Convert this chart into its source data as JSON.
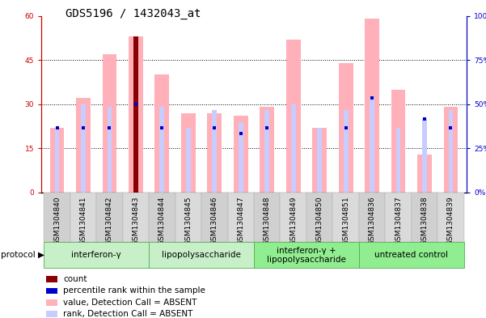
{
  "title": "GDS5196 / 1432043_at",
  "samples": [
    "GSM1304840",
    "GSM1304841",
    "GSM1304842",
    "GSM1304843",
    "GSM1304844",
    "GSM1304845",
    "GSM1304846",
    "GSM1304847",
    "GSM1304848",
    "GSM1304849",
    "GSM1304850",
    "GSM1304851",
    "GSM1304836",
    "GSM1304837",
    "GSM1304838",
    "GSM1304839"
  ],
  "value_bars": [
    22,
    32,
    47,
    53,
    40,
    27,
    27,
    26,
    29,
    52,
    22,
    44,
    59,
    35,
    13,
    29
  ],
  "rank_bars": [
    22,
    30,
    29,
    30,
    29,
    22,
    28,
    24,
    28,
    30,
    22,
    28,
    32,
    22,
    25,
    28
  ],
  "count_bar_index": 3,
  "count_bar_height": 53,
  "blue_rank_values": [
    22,
    22,
    22,
    30,
    22,
    -1,
    22,
    20,
    22,
    -1,
    -1,
    22,
    32,
    -1,
    25,
    22
  ],
  "protocols": [
    {
      "label": "interferon-γ",
      "start": 0,
      "end": 4,
      "color": "#c8f0c8"
    },
    {
      "label": "lipopolysaccharide",
      "start": 4,
      "end": 8,
      "color": "#c8f0c8"
    },
    {
      "label": "interferon-γ +\nlipopolysaccharide",
      "start": 8,
      "end": 12,
      "color": "#90ee90"
    },
    {
      "label": "untreated control",
      "start": 12,
      "end": 16,
      "color": "#90ee90"
    }
  ],
  "ylim_left": [
    0,
    60
  ],
  "ylim_right": [
    0,
    100
  ],
  "yticks_left": [
    0,
    15,
    30,
    45,
    60
  ],
  "ytick_labels_left": [
    "0",
    "15",
    "30",
    "45",
    "60"
  ],
  "yticks_right": [
    0,
    25,
    50,
    75,
    100
  ],
  "ytick_labels_right": [
    "0%",
    "25%",
    "50%",
    "75%",
    "100%"
  ],
  "value_bar_color": "#ffb0b8",
  "rank_bar_color": "#c8ccff",
  "count_bar_color": "#8b0000",
  "blue_dot_color": "#0000cc",
  "plot_bg_color": "#ffffff",
  "grid_color": "#000000",
  "axis_color_left": "#cc0000",
  "axis_color_right": "#0000cc",
  "title_fontsize": 10,
  "tick_fontsize": 6.5,
  "label_fontsize": 7.5,
  "legend_fontsize": 7.5,
  "xtick_bg": "#d4d4d4"
}
